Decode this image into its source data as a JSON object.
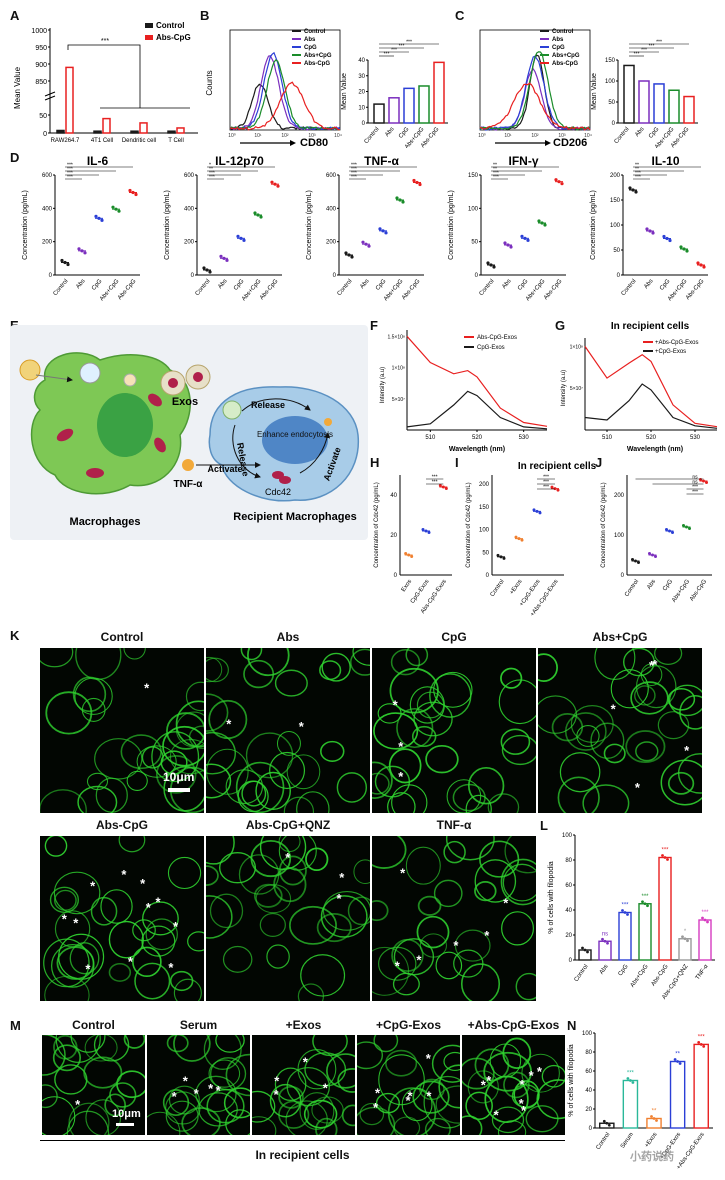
{
  "panels": {
    "A": "A",
    "B": "B",
    "C": "C",
    "D": "D",
    "E": "E",
    "F": "F",
    "G": "G",
    "H": "H",
    "I": "I",
    "J": "J",
    "K": "K",
    "L": "L",
    "M": "M",
    "N": "N"
  },
  "colors": {
    "control": "#1a1a1a",
    "abs": "#7b2fbe",
    "cpg": "#2b3fd6",
    "abscpg_combo": "#1a8c2a",
    "abscpg": "#e82020",
    "qnz": "#9a9a9a",
    "tnf": "#d63cc0",
    "serum": "#2ab89a",
    "exos": "#f08030",
    "cell_green": "#2fd12f",
    "cell_bg": "#020602"
  },
  "sig": {
    "s3": "***",
    "s2": "**",
    "s1": "*",
    "ns": "ns"
  },
  "panelA": {
    "ylabel": "Mean Value",
    "legend": [
      "Control",
      "Abs-CpG"
    ],
    "categories": [
      "RAW264.7",
      "4T1 Cell",
      "Dendritic cell",
      "T Cell"
    ],
    "yticks_top": [
      "1000",
      "950",
      "900",
      "850"
    ],
    "yticks_bottom": [
      "50",
      "0"
    ]
  },
  "panelB": {
    "xlabel": "CD80",
    "ylabel": "Counts",
    "legend": [
      "Control",
      "Abs",
      "CpG",
      "Abs+CpG",
      "Abs-CpG"
    ],
    "bar_ylabel": "Mean Value",
    "bar_categories": [
      "Control",
      "Abs",
      "CpG",
      "Abs+CpG",
      "Abs-CpG"
    ],
    "bar_yticks": [
      "40",
      "30",
      "20",
      "10",
      "0"
    ]
  },
  "panelC": {
    "xlabel": "CD206",
    "ylabel": "Counts",
    "legend": [
      "Control",
      "Abs",
      "CpG",
      "Abs+CpG",
      "Abs-CpG"
    ],
    "bar_ylabel": "Mean Value",
    "bar_categories": [
      "Control",
      "Abs",
      "CpG",
      "Abs+CpG",
      "Abs-CpG"
    ],
    "bar_yticks": [
      "150",
      "100",
      "50",
      "0"
    ]
  },
  "panelD": {
    "ylabel": "Concentration (pg/mL)",
    "categories": [
      "Control",
      "Abs",
      "CpG",
      "Abs+CpG",
      "Abs-CpG"
    ],
    "titles": [
      "IL-6",
      "IL-12p70",
      "TNF-α",
      "IFN-γ",
      "IL-10"
    ],
    "yticks": [
      [
        "600",
        "400",
        "200",
        "0"
      ],
      [
        "600",
        "400",
        "200",
        "0"
      ],
      [
        "600",
        "400",
        "200",
        "0"
      ],
      [
        "150",
        "100",
        "50",
        "0"
      ],
      [
        "200",
        "150",
        "100",
        "50",
        "0"
      ]
    ]
  },
  "panelE": {
    "exos": "Exos",
    "release1": "Release",
    "release2": "Release",
    "enhance": "Enhance endocytosis",
    "activate1": "Activate",
    "activate2": "Activate",
    "tnf": "TNF-α",
    "cdc42": "Cdc42",
    "macrophages": "Macrophages",
    "recipient": "Recipient Macrophages"
  },
  "panelF": {
    "ylabel": "Intensity (a.u)",
    "xlabel": "Wavelength (nm)",
    "legend": [
      "Abs-CpG-Exos",
      "CpG-Exos"
    ],
    "yticks": [
      "1.5×10⁸",
      "1×10⁸",
      "5×10⁷"
    ],
    "xticks": [
      "510",
      "520",
      "530"
    ]
  },
  "panelG": {
    "title": "In recipient cells",
    "ylabel": "Intensity (a.u)",
    "xlabel": "Wavelength (nm)",
    "legend": [
      "+Abs-CpG-Exos",
      "+CpG-Exos"
    ],
    "yticks": [
      "1×10⁸",
      "5×10⁷"
    ],
    "xticks": [
      "510",
      "520",
      "530"
    ]
  },
  "panelH": {
    "ylabel": "Concentration of Cdc42 (pg/mL)",
    "categories": [
      "Exos",
      "CpG-Exos",
      "Abs-CpG-Exos"
    ],
    "yticks": [
      "40",
      "20",
      "0"
    ]
  },
  "panelI": {
    "title": "In recipient cells",
    "ylabel": "Concentration of Cdc42 (pg/mL)",
    "categories": [
      "Control",
      "+Exos",
      "+CpG-Exos",
      "+Abs-CpG-Exos"
    ],
    "yticks": [
      "200",
      "150",
      "100",
      "50",
      "0"
    ]
  },
  "panelJ": {
    "ylabel": "Concentration of Cdc42 (pg/mL)",
    "categories": [
      "Control",
      "Abs",
      "CpG",
      "Abs+CpG",
      "Abs-CpG"
    ],
    "yticks": [
      "200",
      "100",
      "0"
    ]
  },
  "panelK": {
    "row1": [
      "Control",
      "Abs",
      "CpG",
      "Abs+CpG"
    ],
    "row2": [
      "Abs-CpG",
      "Abs-CpG+QNZ",
      "TNF-α"
    ],
    "scale": "10μm"
  },
  "panelL": {
    "ylabel": "% of cells with filopodia",
    "categories": [
      "Control",
      "Abs",
      "CpG",
      "Abs+CpG",
      "Abs-CpG",
      "Abs-CpG+QNZ",
      "TNF-α"
    ],
    "yticks": [
      "100",
      "80",
      "60",
      "40",
      "20",
      "0"
    ]
  },
  "panelM": {
    "labels": [
      "Control",
      "Serum",
      "+Exos",
      "+CpG-Exos",
      "+Abs-CpG-Exos"
    ],
    "scale": "10μm",
    "caption": "In recipient cells"
  },
  "panelN": {
    "ylabel": "% of cells with filopodia",
    "categories": [
      "Control",
      "Serum",
      "+Exos",
      "+CpG-Exos",
      "+Abs-CpG-Exos"
    ],
    "yticks": [
      "100",
      "80",
      "60",
      "40",
      "20",
      "0"
    ]
  },
  "watermark": "小药说药",
  "chart_data": [
    {
      "type": "bar",
      "panel": "A",
      "ylabel": "Mean Value",
      "categories": [
        "RAW264.7",
        "4T1 Cell",
        "Dendritic cell",
        "T Cell"
      ],
      "series": [
        {
          "name": "Control",
          "values": [
            7,
            5,
            5,
            5
          ]
        },
        {
          "name": "Abs-CpG",
          "values": [
            890,
            40,
            28,
            14
          ]
        }
      ]
    },
    {
      "type": "bar",
      "panel": "B",
      "ylabel": "Mean Value",
      "categories": [
        "Control",
        "Abs",
        "CpG",
        "Abs+CpG",
        "Abs-CpG"
      ],
      "values": [
        12,
        16,
        22,
        23.5,
        38.5
      ],
      "ylim": [
        0,
        40
      ]
    },
    {
      "type": "bar",
      "panel": "C",
      "ylabel": "Mean Value",
      "categories": [
        "Control",
        "Abs",
        "CpG",
        "Abs+CpG",
        "Abs-CpG"
      ],
      "values": [
        137,
        100,
        93,
        78,
        63
      ],
      "ylim": [
        0,
        150
      ]
    },
    {
      "type": "scatter",
      "panel": "D-IL-6",
      "categories": [
        "Control",
        "Abs",
        "CpG",
        "Abs+CpG",
        "Abs-CpG"
      ],
      "values": [
        75,
        145,
        340,
        395,
        495
      ],
      "ylim": [
        0,
        600
      ]
    },
    {
      "type": "scatter",
      "panel": "D-IL-12p70",
      "categories": [
        "Control",
        "Abs",
        "CpG",
        "Abs+CpG",
        "Abs-CpG"
      ],
      "values": [
        30,
        100,
        220,
        360,
        545
      ],
      "ylim": [
        0,
        600
      ]
    },
    {
      "type": "scatter",
      "panel": "D-TNF-α",
      "categories": [
        "Control",
        "Abs",
        "CpG",
        "Abs+CpG",
        "Abs-CpG"
      ],
      "values": [
        120,
        185,
        265,
        450,
        555
      ],
      "ylim": [
        0,
        600
      ]
    },
    {
      "type": "scatter",
      "panel": "D-IFN-γ",
      "categories": [
        "Control",
        "Abs",
        "CpG",
        "Abs+CpG",
        "Abs-CpG"
      ],
      "values": [
        15,
        45,
        55,
        78,
        140
      ],
      "ylim": [
        0,
        150
      ]
    },
    {
      "type": "scatter",
      "panel": "D-IL-10",
      "categories": [
        "Control",
        "Abs",
        "CpG",
        "Abs+CpG",
        "Abs-CpG"
      ],
      "values": [
        170,
        88,
        73,
        52,
        20
      ],
      "ylim": [
        0,
        200
      ]
    },
    {
      "type": "line",
      "panel": "F",
      "x": [
        505,
        510,
        515,
        518,
        520,
        525,
        530,
        535
      ],
      "series": [
        {
          "name": "Abs-CpG-Exos",
          "values": [
            150000000,
            108000000,
            90000000,
            95000000,
            85000000,
            35000000,
            12000000,
            6000000
          ]
        },
        {
          "name": "CpG-Exos",
          "values": [
            5000000,
            10000000,
            40000000,
            62000000,
            55000000,
            20000000,
            5000000,
            2000000
          ]
        }
      ]
    },
    {
      "type": "line",
      "panel": "G",
      "x": [
        505,
        510,
        515,
        518,
        520,
        525,
        530,
        535
      ],
      "series": [
        {
          "name": "+Abs-CpG-Exos",
          "values": [
            100000000,
            62000000,
            80000000,
            90000000,
            82000000,
            30000000,
            8000000,
            4000000
          ]
        },
        {
          "name": "+CpG-Exos",
          "values": [
            15000000,
            12000000,
            35000000,
            55000000,
            48000000,
            15000000,
            5000000,
            2000000
          ]
        }
      ]
    },
    {
      "type": "scatter",
      "panel": "H",
      "categories": [
        "Exos",
        "CpG-Exos",
        "Abs-CpG-Exos"
      ],
      "values": [
        10,
        22,
        44
      ],
      "ylim": [
        0,
        50
      ]
    },
    {
      "type": "scatter",
      "panel": "I",
      "categories": [
        "Control",
        "+Exos",
        "+CpG-Exos",
        "+Abs-CpG-Exos"
      ],
      "values": [
        40,
        80,
        140,
        190
      ],
      "ylim": [
        0,
        220
      ]
    },
    {
      "type": "scatter",
      "panel": "J",
      "categories": [
        "Control",
        "Abs",
        "CpG",
        "Abs+CpG",
        "Abs-CpG"
      ],
      "values": [
        35,
        50,
        110,
        120,
        235
      ],
      "ylim": [
        0,
        250
      ]
    },
    {
      "type": "bar",
      "panel": "L",
      "categories": [
        "Control",
        "Abs",
        "CpG",
        "Abs+CpG",
        "Abs-CpG",
        "Abs-CpG+QNZ",
        "TNF-α"
      ],
      "values": [
        8,
        15,
        38,
        45,
        82,
        17,
        32
      ],
      "ylim": [
        0,
        100
      ]
    },
    {
      "type": "bar",
      "panel": "N",
      "categories": [
        "Control",
        "Serum",
        "+Exos",
        "+CpG-Exos",
        "+Abs-CpG-Exos"
      ],
      "values": [
        5,
        50,
        10,
        70,
        88
      ],
      "ylim": [
        0,
        100
      ]
    }
  ]
}
